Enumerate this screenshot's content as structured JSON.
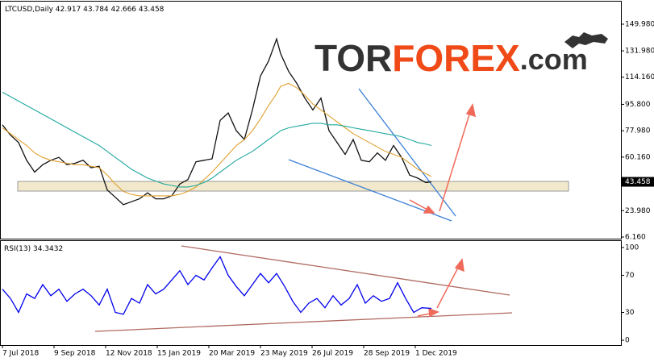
{
  "chart_data": [
    {
      "type": "line",
      "title": "LTCUSD,Daily",
      "ohlc": [
        42.917,
        43.784,
        42.666,
        43.458
      ],
      "logo": [
        "TOR",
        "FOREX",
        ".com"
      ],
      "x": [
        0,
        10,
        20,
        30,
        40,
        50,
        60,
        70,
        80,
        90,
        100,
        110,
        120,
        130,
        140,
        150,
        160,
        170,
        180,
        190,
        200,
        210,
        220,
        230,
        240,
        250,
        260,
        270,
        280,
        290,
        300,
        310,
        320,
        330,
        340,
        345,
        355,
        365,
        375,
        385,
        395,
        405,
        415,
        425,
        435,
        445,
        455,
        465,
        475,
        485,
        495,
        505,
        515,
        525,
        532
      ],
      "series": [
        {
          "color": "#111111",
          "values": [
            82,
            75,
            70,
            58,
            50,
            55,
            58,
            60,
            55,
            56,
            58,
            53,
            54,
            38,
            33,
            28,
            30,
            32,
            36,
            32,
            32,
            34,
            42,
            45,
            57,
            58,
            59,
            85,
            90,
            78,
            72,
            92,
            115,
            125,
            140,
            130,
            118,
            110,
            100,
            92,
            100,
            78,
            70,
            62,
            72,
            58,
            57,
            63,
            58,
            68,
            60,
            48,
            46,
            43,
            43.458
          ]
        },
        {
          "color": "#e0a030",
          "values": [
            80,
            76,
            72,
            68,
            63,
            60,
            58,
            57,
            56,
            55,
            55,
            54,
            53,
            48,
            42,
            37,
            35,
            34,
            34,
            34,
            34,
            34,
            35,
            37,
            40,
            45,
            50,
            56,
            62,
            68,
            72,
            78,
            86,
            95,
            103,
            108,
            110,
            107,
            102,
            96,
            92,
            88,
            84,
            80,
            76,
            73,
            70,
            67,
            64,
            62,
            60,
            56,
            52,
            49,
            47
          ]
        },
        {
          "color": "#20a8a0",
          "values": [
            104,
            101,
            98,
            95,
            92,
            89,
            86,
            83,
            80,
            77,
            74,
            71,
            68,
            64,
            60,
            56,
            52,
            49,
            46,
            44,
            42,
            41,
            40,
            40,
            41,
            43,
            46,
            50,
            54,
            58,
            61,
            64,
            68,
            72,
            76,
            78,
            80,
            81,
            82,
            83,
            83,
            82,
            82,
            81,
            80,
            79,
            78,
            77,
            76,
            75,
            74,
            72,
            70,
            69,
            68
          ]
        }
      ],
      "xlim": [
        -3,
        767
      ],
      "ylim": [
        5.07,
        165.23
      ],
      "yticks": [
        {
          "value": 149.98,
          "label": "149.980"
        },
        {
          "value": 131.98,
          "label": "131.980"
        },
        {
          "value": 114.16,
          "label": "114.160"
        },
        {
          "value": 95.8,
          "label": "95.800"
        },
        {
          "value": 77.98,
          "label": "77.980"
        },
        {
          "value": 60.16,
          "label": "60.160"
        },
        {
          "value": 23.98,
          "label": "23.980"
        },
        {
          "value": 6.16,
          "label": "6.160"
        }
      ]
    },
    {
      "type": "line",
      "title": "RSI(13)",
      "current": 34.3432,
      "x": [
        0,
        10,
        20,
        30,
        40,
        50,
        60,
        70,
        80,
        90,
        100,
        110,
        120,
        130,
        140,
        150,
        160,
        170,
        180,
        190,
        200,
        210,
        220,
        230,
        240,
        250,
        260,
        270,
        280,
        290,
        300,
        310,
        320,
        330,
        340,
        350,
        360,
        370,
        380,
        390,
        400,
        410,
        420,
        430,
        440,
        450,
        460,
        470,
        480,
        490,
        500,
        510,
        520,
        532
      ],
      "series": [
        {
          "color": "#0000ee",
          "values": [
            55,
            45,
            30,
            50,
            45,
            60,
            48,
            55,
            42,
            50,
            55,
            48,
            38,
            55,
            30,
            28,
            45,
            40,
            60,
            50,
            55,
            65,
            75,
            60,
            70,
            65,
            78,
            90,
            70,
            58,
            48,
            60,
            72,
            62,
            72,
            58,
            42,
            30,
            40,
            45,
            35,
            48,
            38,
            45,
            60,
            40,
            48,
            42,
            45,
            62,
            45,
            30,
            35,
            34.3432
          ]
        }
      ],
      "xlim": [
        -3,
        767
      ],
      "ylim": [
        -5.2,
        106.9
      ],
      "yticks": [
        100,
        70,
        30,
        0
      ],
      "xticks": [
        {
          "value": 0,
          "label": "7 Jul 2018"
        },
        {
          "value": 64,
          "label": "9 Sep 2018"
        },
        {
          "value": 128,
          "label": "12 Nov 2018"
        },
        {
          "value": 192,
          "label": "15 Jan 2019"
        },
        {
          "value": 256,
          "label": "20 Mar 2019"
        },
        {
          "value": 320,
          "label": "23 May 2019"
        },
        {
          "value": 384,
          "label": "26 Jul 2019"
        },
        {
          "value": 448,
          "label": "28 Sep 2019"
        },
        {
          "value": 512,
          "label": "1 Dec 2019"
        }
      ]
    }
  ]
}
